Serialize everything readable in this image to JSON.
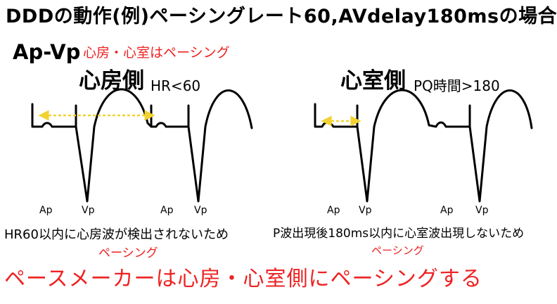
{
  "title": "DDDの動作(例)ペーシングレート60,AVdelay180msの場合",
  "mode": "Ap-Vp",
  "mode_note": "心房・心室はペーシング",
  "atrial": {
    "heading": "心房側",
    "condition": "HR<60",
    "labels": [
      "Ap",
      "Vp",
      "Ap",
      "Vp"
    ],
    "reason": "HR60以内に心房波が検出されないため",
    "pacing": "ペーシング"
  },
  "ventricular": {
    "heading": "心室側",
    "condition": "PQ時間>180",
    "labels": [
      "Ap",
      "Vp",
      "Ap",
      "Vp"
    ],
    "reason": "P波出現後180ms以内に心室波出現しないため",
    "pacing": "ペーシング"
  },
  "conclusion": "ペースメーカーは心房・心室側にペーシングする",
  "colors": {
    "accent_red": "#ee2222",
    "interval_arrow": "#f2d230",
    "ecg_line": "#000000"
  }
}
